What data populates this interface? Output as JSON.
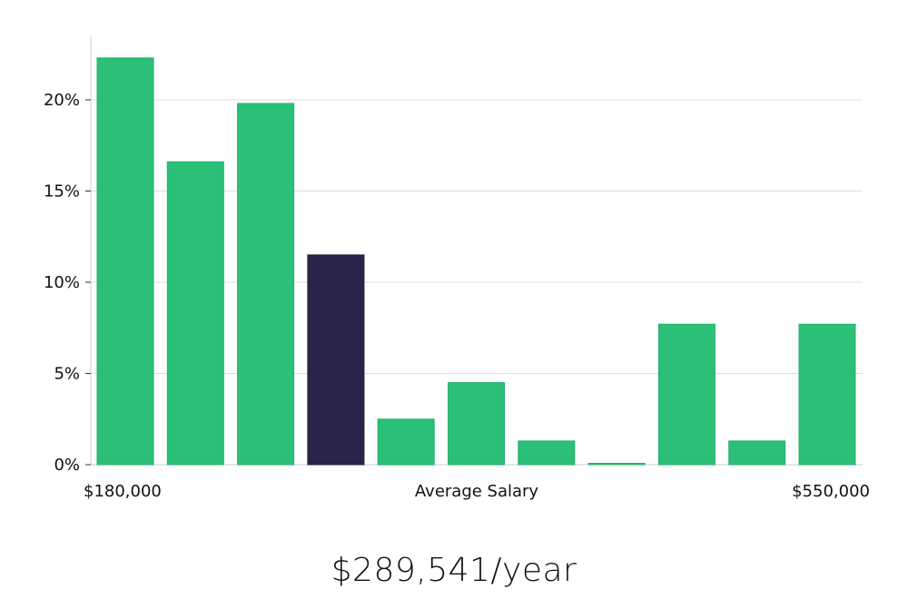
{
  "chart_data": {
    "type": "bar",
    "xlabel": "Average Salary",
    "x_range_labels": {
      "min": "$180,000",
      "max": "$550,000"
    },
    "ylim": [
      0,
      23
    ],
    "yticks": [
      "0%",
      "5%",
      "10%",
      "15%",
      "20%"
    ],
    "ytick_values": [
      0,
      5,
      10,
      15,
      20
    ],
    "grid": true,
    "values": [
      22.3,
      16.6,
      19.8,
      11.5,
      2.5,
      4.5,
      1.3,
      0.05,
      7.7,
      1.3,
      7.7
    ],
    "highlight_index": 3,
    "colors": {
      "bar": "#2bbf78",
      "highlight": "#29254a",
      "grid": "#dddddd",
      "axis": "#cccccc"
    }
  },
  "summary": {
    "salary": "$289,541/year"
  }
}
